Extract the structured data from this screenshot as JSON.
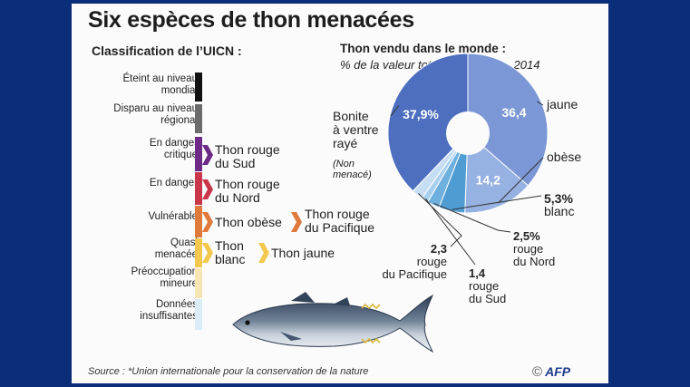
{
  "title": "Six espèces de thon menacées",
  "subtitle_left": "Classification de l’UICN :",
  "subtitle_right": "Thon vendu dans le monde :",
  "subtitle_right_note": "% de la valeur totale des ventes, 2014",
  "source": "Source : *Union internationale pour la conservation de la nature",
  "credit": "AFP",
  "credit_symbol": "©",
  "uicn": {
    "categories": [
      {
        "label": [
          "Éteint au niveau",
          "mondial"
        ],
        "color": "#111111"
      },
      {
        "label": [
          "Disparu au niveau",
          "régional"
        ],
        "color": "#6b6b6b"
      },
      {
        "label": [
          "En danger",
          "critique"
        ],
        "color": "#6e2a87"
      },
      {
        "label": [
          "En danger"
        ],
        "color": "#c9364a"
      },
      {
        "label": [
          "Vulnérable"
        ],
        "color": "#e07a3c"
      },
      {
        "label": [
          "Quasi",
          "menacée"
        ],
        "color": "#f2c94c"
      },
      {
        "label": [
          "Préoccupation",
          "mineure"
        ],
        "color": "#f7e6b4"
      },
      {
        "label": [
          "Données",
          "insuffisantes"
        ],
        "color": "#d9ecf7"
      }
    ],
    "species": [
      {
        "category": 2,
        "label": [
          "Thon rouge",
          "du Sud"
        ]
      },
      {
        "category": 3,
        "label": [
          "Thon rouge",
          "du Nord"
        ]
      },
      {
        "category": 4,
        "label": [
          "Thon obèse"
        ]
      },
      {
        "category": 4,
        "label": [
          "Thon rouge",
          "du Pacifique"
        ]
      },
      {
        "category": 5,
        "label": [
          "Thon",
          "blanc"
        ]
      },
      {
        "category": 5,
        "label": [
          "Thon jaune"
        ]
      }
    ]
  },
  "chart_data": {
    "type": "pie",
    "title": "Thon vendu dans le monde :",
    "subtitle": "% de la valeur totale des ventes, 2014",
    "slices": [
      {
        "label": "jaune",
        "value": 36.4,
        "value_label": "36,4",
        "color": "#7b97d6"
      },
      {
        "label": "obèse",
        "value": 14.2,
        "value_label": "14,2",
        "color": "#95b2e2"
      },
      {
        "label": "blanc",
        "value": 5.3,
        "value_label": "5,3%",
        "color": "#4f9cd2"
      },
      {
        "label": "rouge du Nord",
        "value": 2.5,
        "value_label": "2,5%",
        "color": "#6db0de"
      },
      {
        "label": "rouge du Sud",
        "value": 1.4,
        "value_label": "1,4",
        "color": "#a7d0ee"
      },
      {
        "label": "rouge du Pacifique",
        "value": 2.3,
        "value_label": "2,3",
        "color": "#c6def3"
      },
      {
        "label": "Bonite à ventre rayé",
        "value": 37.9,
        "value_label": "37,9%",
        "color": "#4e6fc0"
      }
    ],
    "annotations": {
      "bonite_label": [
        "Bonite",
        "à ventre",
        "rayé"
      ],
      "bonite_note": [
        "(Non",
        "menacé)"
      ],
      "blanc_label": "blanc",
      "rouge_nord_label": [
        "rouge",
        "du Nord"
      ],
      "rouge_sud_label": [
        "rouge",
        "du Sud"
      ],
      "rouge_pacifique_label": [
        "rouge",
        "du Pacifique"
      ]
    }
  }
}
